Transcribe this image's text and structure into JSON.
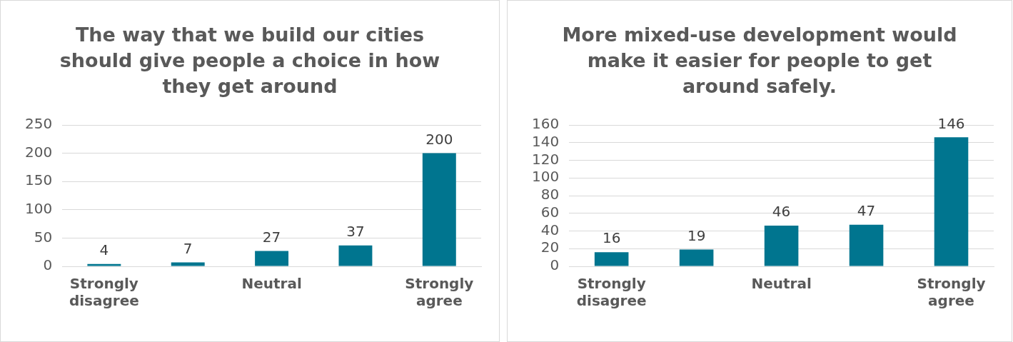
{
  "chart_data": [
    {
      "type": "bar",
      "title": "The way that we build our cities should give people a choice in how they get around",
      "categories": [
        "Strongly disagree",
        null,
        "Neutral",
        null,
        "Strongly agree"
      ],
      "values": [
        4,
        7,
        27,
        37,
        200
      ],
      "color": "#00758f",
      "ylim": [
        0,
        250
      ],
      "yticks": [
        0,
        50,
        100,
        150,
        200,
        250
      ],
      "grid": "y",
      "data_labels": true
    },
    {
      "type": "bar",
      "title": "More mixed-use development would make it easier for people to get around safely.",
      "categories": [
        "Strongly disagree",
        null,
        "Neutral",
        null,
        "Strongly agree"
      ],
      "values": [
        16,
        19,
        46,
        47,
        146
      ],
      "color": "#00758f",
      "ylim": [
        0,
        160
      ],
      "yticks": [
        0,
        20,
        40,
        60,
        80,
        100,
        120,
        140,
        160
      ],
      "grid": "y",
      "data_labels": true
    }
  ]
}
